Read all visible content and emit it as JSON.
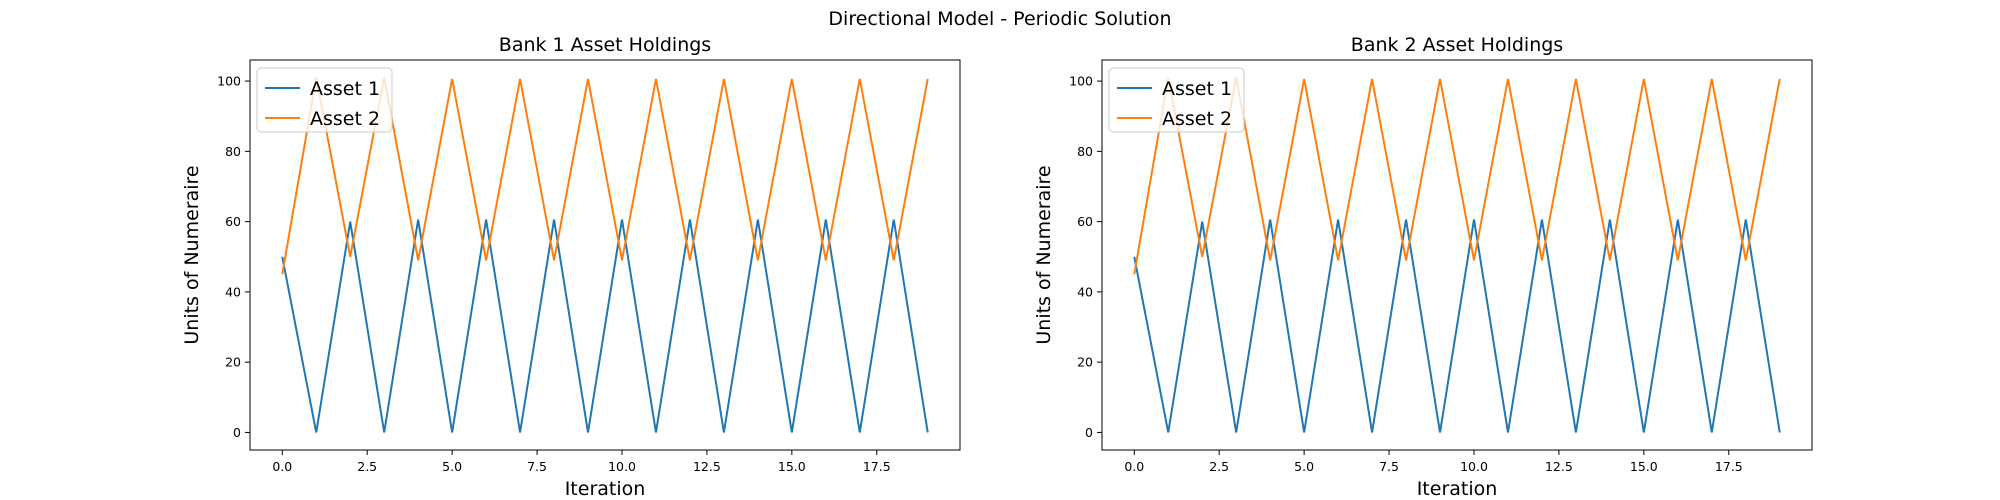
{
  "figure": {
    "suptitle": "Directional Model - Periodic Solution"
  },
  "chart_data": [
    {
      "type": "line",
      "title": "Bank 1 Asset Holdings",
      "xlabel": "Iteration",
      "ylabel": "Units of Numeraire",
      "xlim": [
        -0.95,
        19.95
      ],
      "ylim": [
        -5,
        106
      ],
      "xticks": [
        0.0,
        2.5,
        5.0,
        7.5,
        10.0,
        12.5,
        15.0,
        17.5
      ],
      "xtick_labels": [
        "0.0",
        "2.5",
        "5.0",
        "7.5",
        "10.0",
        "12.5",
        "15.0",
        "17.5"
      ],
      "yticks": [
        0,
        20,
        40,
        60,
        80,
        100
      ],
      "ytick_labels": [
        "0",
        "20",
        "40",
        "60",
        "80",
        "100"
      ],
      "grid": false,
      "legend": "upper-left",
      "x": [
        0,
        1,
        2,
        3,
        4,
        5,
        6,
        7,
        8,
        9,
        10,
        11,
        12,
        13,
        14,
        15,
        16,
        17,
        18,
        19
      ],
      "series": [
        {
          "name": "Asset 1",
          "color": "#1f77b4",
          "values": [
            50,
            0,
            60,
            0,
            60.6,
            0,
            60.6,
            0,
            60.6,
            0,
            60.6,
            0,
            60.6,
            0,
            60.6,
            0,
            60.6,
            0,
            60.6,
            0
          ]
        },
        {
          "name": "Asset 2",
          "color": "#ff7f0e",
          "values": [
            45,
            101,
            50,
            101,
            49,
            100.6,
            49,
            100.6,
            49,
            100.6,
            49,
            100.6,
            49,
            100.6,
            49,
            100.6,
            49,
            100.6,
            49,
            100.6
          ]
        }
      ]
    },
    {
      "type": "line",
      "title": "Bank 2 Asset Holdings",
      "xlabel": "Iteration",
      "ylabel": "Units of Numeraire",
      "xlim": [
        -0.95,
        19.95
      ],
      "ylim": [
        -5,
        106
      ],
      "xticks": [
        0.0,
        2.5,
        5.0,
        7.5,
        10.0,
        12.5,
        15.0,
        17.5
      ],
      "xtick_labels": [
        "0.0",
        "2.5",
        "5.0",
        "7.5",
        "10.0",
        "12.5",
        "15.0",
        "17.5"
      ],
      "yticks": [
        0,
        20,
        40,
        60,
        80,
        100
      ],
      "ytick_labels": [
        "0",
        "20",
        "40",
        "60",
        "80",
        "100"
      ],
      "grid": false,
      "legend": "upper-left",
      "x": [
        0,
        1,
        2,
        3,
        4,
        5,
        6,
        7,
        8,
        9,
        10,
        11,
        12,
        13,
        14,
        15,
        16,
        17,
        18,
        19
      ],
      "series": [
        {
          "name": "Asset 1",
          "color": "#1f77b4",
          "values": [
            50,
            0,
            60,
            0,
            60.6,
            0,
            60.6,
            0,
            60.6,
            0,
            60.6,
            0,
            60.6,
            0,
            60.6,
            0,
            60.6,
            0,
            60.6,
            0
          ]
        },
        {
          "name": "Asset 2",
          "color": "#ff7f0e",
          "values": [
            45,
            101,
            50,
            101,
            49,
            100.6,
            49,
            100.6,
            49,
            100.6,
            49,
            100.6,
            49,
            100.6,
            49,
            100.6,
            49,
            100.6,
            49,
            100.6
          ]
        }
      ]
    }
  ]
}
